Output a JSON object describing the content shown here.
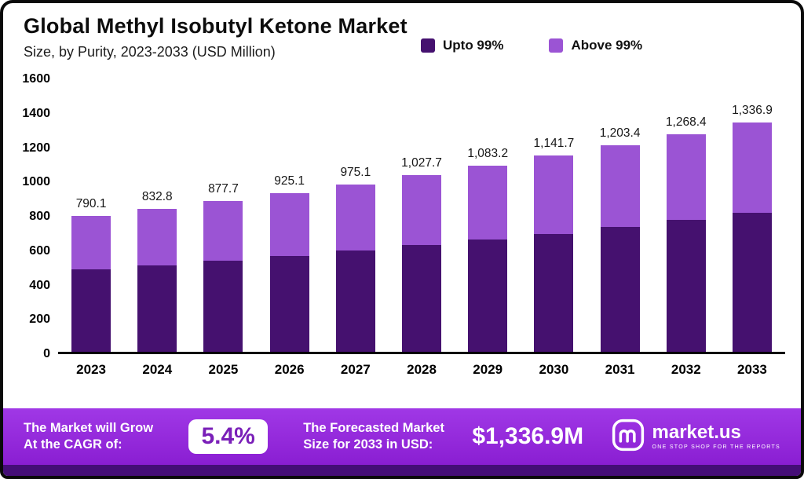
{
  "header": {
    "title": "Global Methyl Isobutyl Ketone Market",
    "subtitle": "Size, by  Purity, 2023-2033 (USD Million)"
  },
  "legend": [
    {
      "label": "Upto 99%",
      "color": "#45116f"
    },
    {
      "label": "Above 99%",
      "color": "#9b54d4"
    }
  ],
  "chart_data": {
    "type": "bar",
    "stacked": true,
    "title": "Global Methyl Isobutyl Ketone Market Size, by Purity, 2023-2033 (USD Million)",
    "xlabel": "",
    "ylabel": "",
    "ylim": [
      0,
      1600
    ],
    "ytick_step": 200,
    "grid": false,
    "legend_position": "top",
    "categories": [
      "2023",
      "2024",
      "2025",
      "2026",
      "2027",
      "2028",
      "2029",
      "2030",
      "2031",
      "2032",
      "2033"
    ],
    "series": [
      {
        "name": "Upto 99%",
        "color": "#45116f",
        "values": [
          480,
          505,
          530,
          558,
          590,
          620,
          652,
          688,
          725,
          768,
          810
        ]
      },
      {
        "name": "Above 99%",
        "color": "#9b54d4",
        "values": [
          310.1,
          327.8,
          347.7,
          367.1,
          385.1,
          407.7,
          431.2,
          453.7,
          478.4,
          500.4,
          526.9
        ]
      }
    ],
    "totals": [
      790.1,
      832.8,
      877.7,
      925.1,
      975.1,
      1027.7,
      1083.2,
      1141.7,
      1203.4,
      1268.4,
      1336.9
    ],
    "total_labels": [
      "790.1",
      "832.8",
      "877.7",
      "925.1",
      "975.1",
      "1,027.7",
      "1,083.2",
      "1,141.7",
      "1,203.4",
      "1,268.4",
      "1,336.9"
    ]
  },
  "footer": {
    "cagr_label_line1": "The Market will Grow",
    "cagr_label_line2": "At the CAGR of:",
    "cagr_value": "5.4%",
    "forecast_label_line1": "The Forecasted Market",
    "forecast_label_line2": "Size for 2033 in USD:",
    "forecast_value": "$1,336.9M",
    "brand": "market.us",
    "brand_tagline": "ONE STOP SHOP FOR THE REPORTS"
  }
}
